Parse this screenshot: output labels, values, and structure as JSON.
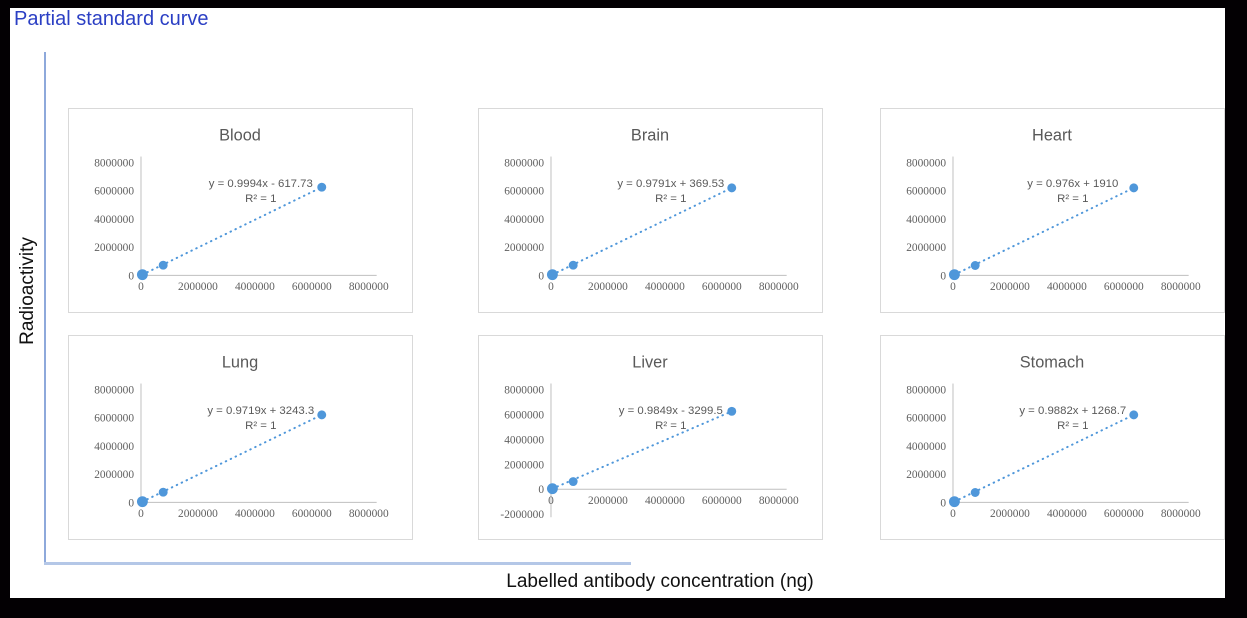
{
  "page": {
    "title": "Partial standard curve",
    "y_axis_label": "Radioactivity",
    "x_axis_label": "Labelled antibody concentration (ng)"
  },
  "colors": {
    "page_title_blue": "#2B3FC4",
    "chart_text_gray": "#595959",
    "tick_label_gray": "#5F5F5F",
    "marker_blue": "#4F97DA",
    "trendline_blue": "#4F97DA",
    "panel_border_gray": "#D9D9D9",
    "chart_axis_gray": "#BFBFBF",
    "outer_axis_vertical_blue": "#8EA9DB",
    "outer_axis_horizontal_blue": "#B4C7E7",
    "frame_black": "#030003"
  },
  "chart_data": [
    {
      "type": "scatter",
      "title": "Blood",
      "equation": "y = 0.9994x - 617.73",
      "r_squared": "R² = 1",
      "xlim": [
        0,
        8000000
      ],
      "ylim": [
        0,
        8000000
      ],
      "x_ticks": [
        "0",
        "2000000",
        "4000000",
        "6000000",
        "8000000"
      ],
      "y_ticks": [
        "0",
        "2000000",
        "4000000",
        "6000000",
        "8000000"
      ],
      "points": [
        [
          50000,
          50000
        ],
        [
          780000,
          720000
        ],
        [
          6350000,
          6250000
        ]
      ],
      "trendline_style": "dotted",
      "legend": "none",
      "grid": "off"
    },
    {
      "type": "scatter",
      "title": "Brain",
      "equation": "y = 0.9791x + 369.53",
      "r_squared": "R² = 1",
      "xlim": [
        0,
        8000000
      ],
      "ylim": [
        0,
        8000000
      ],
      "x_ticks": [
        "0",
        "2000000",
        "4000000",
        "6000000",
        "8000000"
      ],
      "y_ticks": [
        "0",
        "2000000",
        "4000000",
        "6000000",
        "8000000"
      ],
      "points": [
        [
          50000,
          50000
        ],
        [
          780000,
          720000
        ],
        [
          6350000,
          6200000
        ]
      ],
      "trendline_style": "dotted",
      "legend": "none",
      "grid": "off"
    },
    {
      "type": "scatter",
      "title": "Heart",
      "equation": "y = 0.976x + 1910",
      "r_squared": "R² = 1",
      "xlim": [
        0,
        8000000
      ],
      "ylim": [
        0,
        8000000
      ],
      "x_ticks": [
        "0",
        "2000000",
        "4000000",
        "6000000",
        "8000000"
      ],
      "y_ticks": [
        "0",
        "2000000",
        "4000000",
        "6000000",
        "8000000"
      ],
      "points": [
        [
          50000,
          50000
        ],
        [
          780000,
          700000
        ],
        [
          6350000,
          6200000
        ]
      ],
      "trendline_style": "dotted",
      "legend": "none",
      "grid": "off"
    },
    {
      "type": "scatter",
      "title": "Lung",
      "equation": "y = 0.9719x + 3243.3",
      "r_squared": "R² = 1",
      "xlim": [
        0,
        8000000
      ],
      "ylim": [
        0,
        8000000
      ],
      "x_ticks": [
        "0",
        "2000000",
        "4000000",
        "6000000",
        "8000000"
      ],
      "y_ticks": [
        "0",
        "2000000",
        "4000000",
        "6000000",
        "8000000"
      ],
      "points": [
        [
          50000,
          50000
        ],
        [
          780000,
          720000
        ],
        [
          6350000,
          6200000
        ]
      ],
      "trendline_style": "dotted",
      "legend": "none",
      "grid": "off"
    },
    {
      "type": "scatter",
      "title": "Liver",
      "equation": "y = 0.9849x - 3299.5",
      "r_squared": "R² = 1",
      "xlim": [
        0,
        8000000
      ],
      "ylim": [
        -2000000,
        8000000
      ],
      "x_ticks": [
        "0",
        "2000000",
        "4000000",
        "6000000",
        "8000000"
      ],
      "y_ticks": [
        "-2000000",
        "0",
        "2000000",
        "4000000",
        "6000000",
        "8000000"
      ],
      "points": [
        [
          50000,
          50000
        ],
        [
          780000,
          620000
        ],
        [
          6350000,
          6250000
        ]
      ],
      "trendline_style": "dotted",
      "legend": "none",
      "grid": "off"
    },
    {
      "type": "scatter",
      "title": "Stomach",
      "equation": "y = 0.9882x + 1268.7",
      "r_squared": "R² = 1",
      "xlim": [
        0,
        8000000
      ],
      "ylim": [
        0,
        8000000
      ],
      "x_ticks": [
        "0",
        "2000000",
        "4000000",
        "6000000",
        "8000000"
      ],
      "y_ticks": [
        "0",
        "2000000",
        "4000000",
        "6000000",
        "8000000"
      ],
      "points": [
        [
          50000,
          50000
        ],
        [
          780000,
          700000
        ],
        [
          6350000,
          6200000
        ]
      ],
      "trendline_style": "dotted",
      "legend": "none",
      "grid": "off"
    }
  ]
}
